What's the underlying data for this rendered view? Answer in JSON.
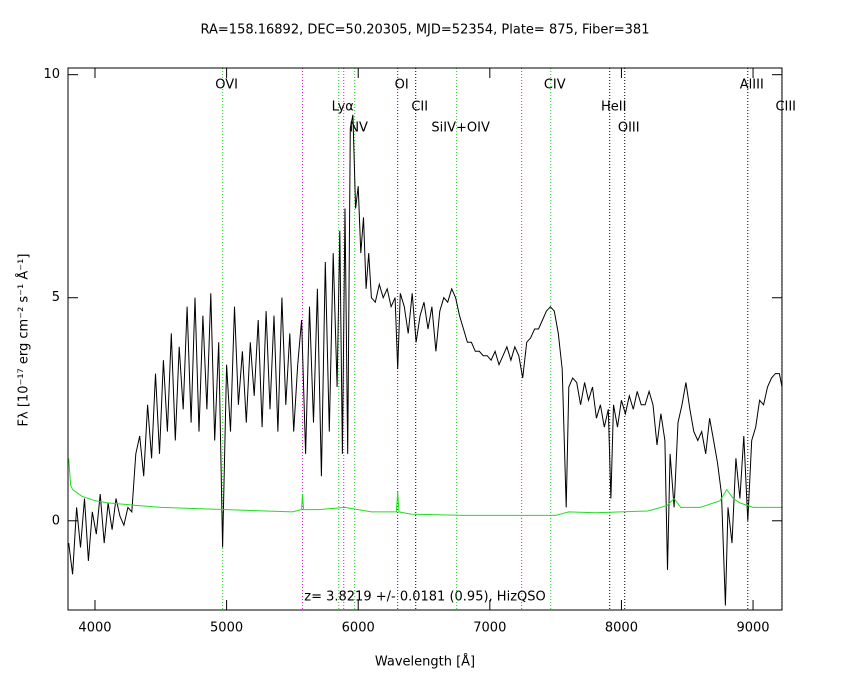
{
  "chart_data": {
    "type": "line",
    "title": "RA=158.16892, DEC=50.20305, MJD=52354, Plate=  875, Fiber=381",
    "xlabel": "Wavelength [Å]",
    "ylabel": "Fλ [10⁻¹⁷ erg cm⁻² s⁻¹ Å⁻¹]",
    "annotation": "z= 3.8219 +/- 0.0181 (0.95), HizQSO",
    "xlim": [
      3795,
      9220
    ],
    "ylim": [
      -2,
      10.15
    ],
    "xticks": [
      4000,
      5000,
      6000,
      7000,
      8000,
      9000
    ],
    "yticks": [
      0,
      5,
      10
    ],
    "series": [
      {
        "color": "#000000",
        "x": [
          3800,
          3830,
          3860,
          3890,
          3920,
          3950,
          3980,
          4010,
          4040,
          4070,
          4100,
          4130,
          4160,
          4190,
          4220,
          4250,
          4280,
          4310,
          4340,
          4370,
          4400,
          4430,
          4460,
          4490,
          4520,
          4550,
          4580,
          4610,
          4640,
          4670,
          4700,
          4730,
          4760,
          4790,
          4820,
          4850,
          4880,
          4910,
          4940,
          4970,
          5000,
          5030,
          5060,
          5090,
          5120,
          5150,
          5180,
          5210,
          5240,
          5270,
          5300,
          5330,
          5360,
          5390,
          5420,
          5450,
          5480,
          5510,
          5540,
          5570,
          5600,
          5630,
          5660,
          5690,
          5720,
          5750,
          5780,
          5810,
          5840,
          5860,
          5880,
          5900,
          5920,
          5940,
          5960,
          5980,
          6000,
          6020,
          6040,
          6060,
          6080,
          6100,
          6130,
          6160,
          6190,
          6220,
          6250,
          6280,
          6300,
          6320,
          6350,
          6380,
          6410,
          6440,
          6470,
          6500,
          6530,
          6560,
          6590,
          6620,
          6650,
          6680,
          6710,
          6740,
          6770,
          6800,
          6830,
          6860,
          6890,
          6920,
          6950,
          6980,
          7010,
          7040,
          7070,
          7100,
          7130,
          7160,
          7190,
          7220,
          7250,
          7280,
          7310,
          7340,
          7370,
          7400,
          7430,
          7460,
          7490,
          7520,
          7550,
          7580,
          7600,
          7630,
          7660,
          7690,
          7720,
          7750,
          7780,
          7810,
          7840,
          7870,
          7900,
          7920,
          7940,
          7970,
          8000,
          8030,
          8060,
          8090,
          8120,
          8150,
          8180,
          8210,
          8240,
          8270,
          8300,
          8330,
          8350,
          8370,
          8400,
          8430,
          8460,
          8490,
          8520,
          8550,
          8580,
          8610,
          8640,
          8670,
          8700,
          8730,
          8760,
          8790,
          8810,
          8840,
          8870,
          8900,
          8930,
          8960,
          8990,
          9020,
          9050,
          9080,
          9110,
          9140,
          9170,
          9200,
          9220
        ],
        "values": [
          -0.5,
          -1.2,
          0.3,
          -0.6,
          0.5,
          -0.9,
          0.2,
          -0.3,
          0.6,
          -0.5,
          0.4,
          -0.2,
          0.5,
          0.1,
          -0.1,
          0.3,
          0.2,
          1.5,
          1.9,
          1.0,
          2.6,
          1.4,
          3.3,
          1.5,
          3.6,
          2.0,
          4.2,
          1.8,
          3.9,
          2.5,
          4.8,
          2.2,
          5.0,
          2.0,
          4.6,
          2.5,
          5.1,
          1.8,
          4.0,
          -0.6,
          3.5,
          2.0,
          4.8,
          2.6,
          3.8,
          2.2,
          4.0,
          2.8,
          4.5,
          2.1,
          4.7,
          2.5,
          4.6,
          2.0,
          5.0,
          2.6,
          4.2,
          2.0,
          3.5,
          4.5,
          1.5,
          4.8,
          2.2,
          5.2,
          1.0,
          5.8,
          2.0,
          6.0,
          3.0,
          6.5,
          1.5,
          7.0,
          1.5,
          8.8,
          9.1,
          7.0,
          7.5,
          6.0,
          6.8,
          5.2,
          6.0,
          5.0,
          4.9,
          5.3,
          5.0,
          5.2,
          4.8,
          5.0,
          3.4,
          5.1,
          4.8,
          4.2,
          5.1,
          4.0,
          4.6,
          4.9,
          4.3,
          4.8,
          3.8,
          4.7,
          5.0,
          4.9,
          5.2,
          5.0,
          4.6,
          4.3,
          4.0,
          4.0,
          3.8,
          3.8,
          3.7,
          3.7,
          3.6,
          3.8,
          3.5,
          3.7,
          3.9,
          3.6,
          3.9,
          3.7,
          3.2,
          4.0,
          4.1,
          4.3,
          4.3,
          4.5,
          4.7,
          4.8,
          4.7,
          4.2,
          3.4,
          0.3,
          3.0,
          3.2,
          3.1,
          2.6,
          3.1,
          2.7,
          3.0,
          2.3,
          2.6,
          2.1,
          2.5,
          0.5,
          2.6,
          2.1,
          2.7,
          2.4,
          2.8,
          2.5,
          2.9,
          2.6,
          2.6,
          2.9,
          2.6,
          1.7,
          2.4,
          1.8,
          -1.1,
          1.5,
          0.3,
          2.2,
          2.6,
          3.1,
          2.5,
          2.0,
          1.8,
          2.0,
          1.5,
          2.3,
          1.8,
          1.3,
          0.6,
          -1.9,
          0.3,
          -0.5,
          1.4,
          0.5,
          1.9,
          0.0,
          1.8,
          2.1,
          2.7,
          2.6,
          3.0,
          3.2,
          3.3,
          3.3,
          3.0
        ]
      },
      {
        "color": "#22dd22",
        "x": [
          3800,
          3815,
          3830,
          3900,
          4000,
          4100,
          4300,
          4500,
          4800,
          5000,
          5300,
          5500,
          5570,
          5577,
          5585,
          5700,
          5900,
          6100,
          6290,
          6300,
          6310,
          6400,
          6800,
          7200,
          7500,
          7600,
          7800,
          8000,
          8200,
          8300,
          8350,
          8400,
          8450,
          8600,
          8750,
          8800,
          8850,
          8900,
          9000,
          9100,
          9220
        ],
        "values": [
          1.4,
          0.8,
          0.7,
          0.55,
          0.45,
          0.4,
          0.35,
          0.3,
          0.27,
          0.25,
          0.22,
          0.2,
          0.25,
          0.6,
          0.25,
          0.25,
          0.3,
          0.2,
          0.2,
          0.65,
          0.2,
          0.15,
          0.12,
          0.12,
          0.12,
          0.2,
          0.18,
          0.2,
          0.22,
          0.3,
          0.35,
          0.5,
          0.3,
          0.3,
          0.45,
          0.7,
          0.5,
          0.4,
          0.3,
          0.3,
          0.3
        ]
      }
    ],
    "lines": [
      {
        "label": "OVI",
        "x": 4970,
        "color": "#22cc22"
      },
      {
        "x": 5577,
        "color": "#cc22cc"
      },
      {
        "label": "Lyα",
        "x": 5852,
        "color": "#22cc22"
      },
      {
        "x": 5890,
        "color": "#cc22cc"
      },
      {
        "label": "NV",
        "x": 5973,
        "color": "#22cc22"
      },
      {
        "label": "OI",
        "x": 6300,
        "color": "#660066"
      },
      {
        "label": "CII",
        "x": 6437,
        "color": "#000000"
      },
      {
        "label": "SiIV+OIV",
        "x": 6748,
        "color": "#22cc22"
      },
      {
        "x": 7242,
        "color": "#cc22cc"
      },
      {
        "label": "CIV",
        "x": 7463,
        "color": "#22cc22"
      },
      {
        "label": "HeII",
        "x": 7911,
        "color": "#000000"
      },
      {
        "label": "OIII",
        "x": 8025,
        "color": "#000000"
      },
      {
        "label": "AlIII",
        "x": 8960,
        "color": "#000000"
      },
      {
        "label": "CIII",
        "x": 9218,
        "color": "#22cc22"
      }
    ]
  }
}
